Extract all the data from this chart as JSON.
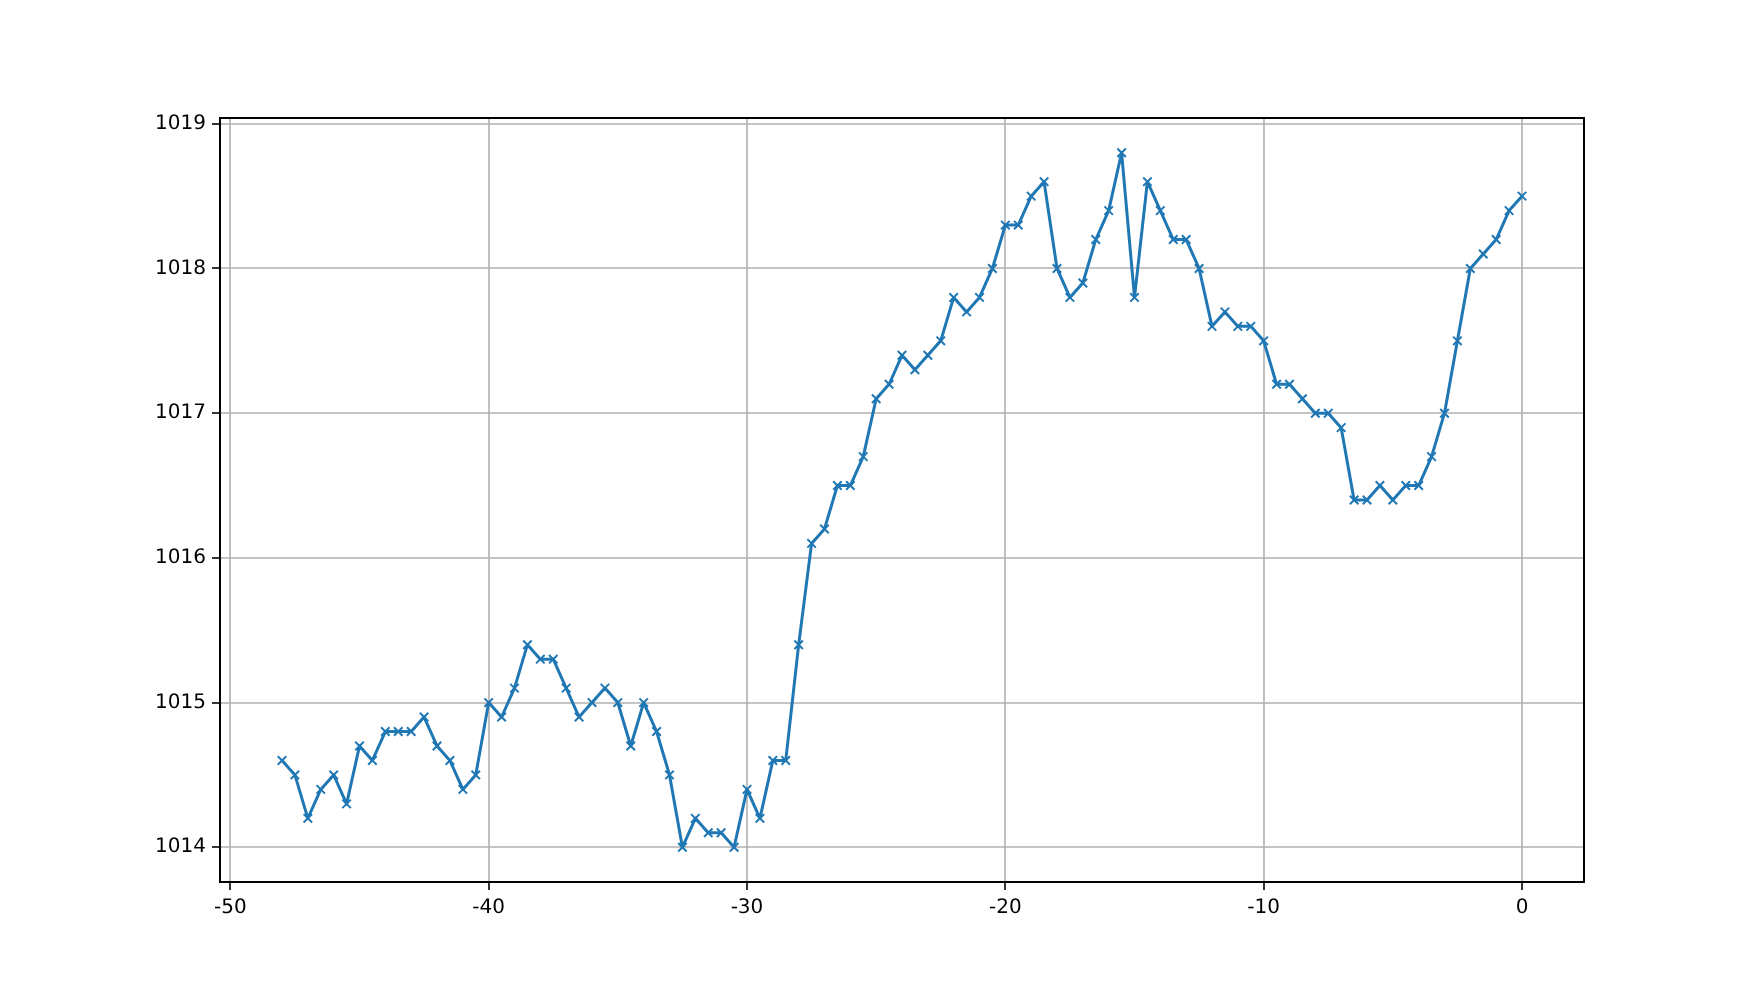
{
  "chart_data": {
    "type": "line",
    "x": [
      -48,
      -47.5,
      -47,
      -46.5,
      -46,
      -45.5,
      -45,
      -44.5,
      -44,
      -43.5,
      -43,
      -42.5,
      -42,
      -41.5,
      -41,
      -40.5,
      -40,
      -39.5,
      -39,
      -38.5,
      -38,
      -37.5,
      -37,
      -36.5,
      -36,
      -35.5,
      -35,
      -34.5,
      -34,
      -33.5,
      -33,
      -32.5,
      -32,
      -31.5,
      -31,
      -30.5,
      -30,
      -29.5,
      -29,
      -28.5,
      -28,
      -27.5,
      -27,
      -26.5,
      -26,
      -25.5,
      -25,
      -24.5,
      -24,
      -23.5,
      -23,
      -22.5,
      -22,
      -21.5,
      -21,
      -20.5,
      -20,
      -19.5,
      -19,
      -18.5,
      -18,
      -17.5,
      -17,
      -16.5,
      -16,
      -15.5,
      -15,
      -14.5,
      -14,
      -13.5,
      -13,
      -12.5,
      -12,
      -11.5,
      -11,
      -10.5,
      -10,
      -9.5,
      -9,
      -8.5,
      -8,
      -7.5,
      -7,
      -6.5,
      -6,
      -5.5,
      -5,
      -4.5,
      -4,
      -3.5,
      -3,
      -2.5,
      -2,
      -1.5,
      -1,
      -0.5,
      0
    ],
    "series": [
      {
        "color": "#1f77b4",
        "values": [
          1014.6,
          1014.5,
          1014.2,
          1014.4,
          1014.5,
          1014.3,
          1014.7,
          1014.6,
          1014.8,
          1014.8,
          1014.8,
          1014.9,
          1014.7,
          1014.6,
          1014.4,
          1014.5,
          1015.0,
          1014.9,
          1015.1,
          1015.4,
          1015.3,
          1015.3,
          1015.1,
          1014.9,
          1015.0,
          1015.1,
          1015.0,
          1014.7,
          1015.0,
          1014.8,
          1014.5,
          1014.0,
          1014.2,
          1014.1,
          1014.1,
          1014.0,
          1014.4,
          1014.2,
          1014.6,
          1014.6,
          1015.4,
          1016.1,
          1016.2,
          1016.5,
          1016.5,
          1016.7,
          1017.1,
          1017.2,
          1017.4,
          1017.3,
          1017.4,
          1017.5,
          1017.8,
          1017.7,
          1017.8,
          1018.0,
          1018.3,
          1018.3,
          1018.5,
          1018.6,
          1018.0,
          1017.8,
          1017.9,
          1018.2,
          1018.4,
          1018.8,
          1017.8,
          1018.6,
          1018.4,
          1018.2,
          1018.2,
          1018.0,
          1017.6,
          1017.7,
          1017.6,
          1017.6,
          1017.5,
          1017.2,
          1017.2,
          1017.1,
          1017.0,
          1017.0,
          1016.9,
          1016.4,
          1016.4,
          1016.5,
          1016.4,
          1016.5,
          1016.5,
          1016.7,
          1017.0,
          1017.5,
          1018.0,
          1018.1,
          1018.2,
          1018.4,
          1018.5
        ]
      }
    ],
    "xlim": [
      -50.4,
      2.4
    ],
    "xticks": [
      -50,
      -40,
      -30,
      -20,
      -10,
      0
    ],
    "ylim": [
      1013.76,
      1019.04
    ],
    "yticks": [
      1014,
      1015,
      1016,
      1017,
      1018,
      1019
    ],
    "grid": true,
    "marker": "cross",
    "line_style": "solid"
  }
}
